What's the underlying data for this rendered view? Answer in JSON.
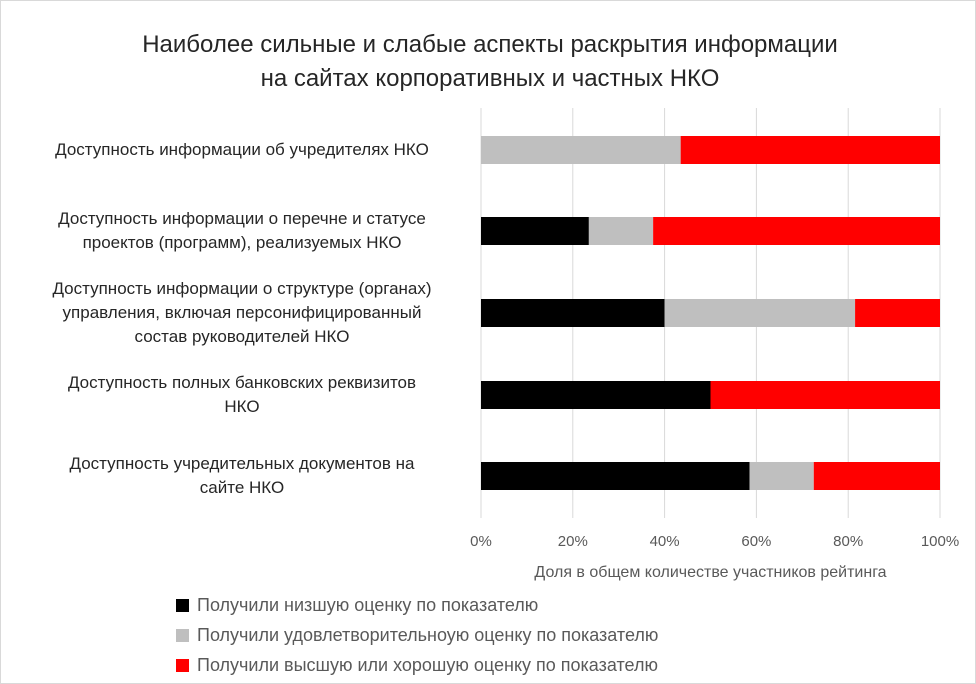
{
  "chart_data": {
    "type": "bar",
    "orientation": "horizontal",
    "stacked": true,
    "title": "Наиболее сильные и слабые аспекты раскрытия информации на сайтах корпоративных и частных НКО",
    "title_lines": [
      "Наиболее сильные и слабые аспекты раскрытия информации",
      "на сайтах корпоративных и частных НКО"
    ],
    "categories": [
      [
        "Доступность информации об учредителях НКО"
      ],
      [
        "Доступность информации о перечне и статусе",
        "проектов (программ), реализуемых НКО"
      ],
      [
        "Доступность информации о структуре (органах)",
        "управления, включая персонифицированный",
        "состав руководителей НКО"
      ],
      [
        "Доступность полных банковских реквизитов",
        "НКО"
      ],
      [
        "Доступность учредительных документов на",
        "сайте НКО"
      ]
    ],
    "series": [
      {
        "name": "Получили низшую оценку по показателю",
        "color": "#000000",
        "values": [
          0,
          23.5,
          40,
          50,
          58.5
        ]
      },
      {
        "name": "Получили удовлетворительноую оценку по показателю",
        "color": "#bfbfbf",
        "values": [
          43.5,
          14,
          41.5,
          0,
          14
        ]
      },
      {
        "name": "Получили высшую или хорошую оценку по показателю",
        "color": "#ff0000",
        "values": [
          56.5,
          62.5,
          18.5,
          50,
          27.5
        ]
      }
    ],
    "xlabel": "Доля в общем количестве участников рейтинга",
    "xlim": [
      0,
      100
    ],
    "xticks": [
      "0%",
      "20%",
      "40%",
      "60%",
      "80%",
      "100%"
    ],
    "grid": "vertical",
    "legend_position": "bottom"
  }
}
